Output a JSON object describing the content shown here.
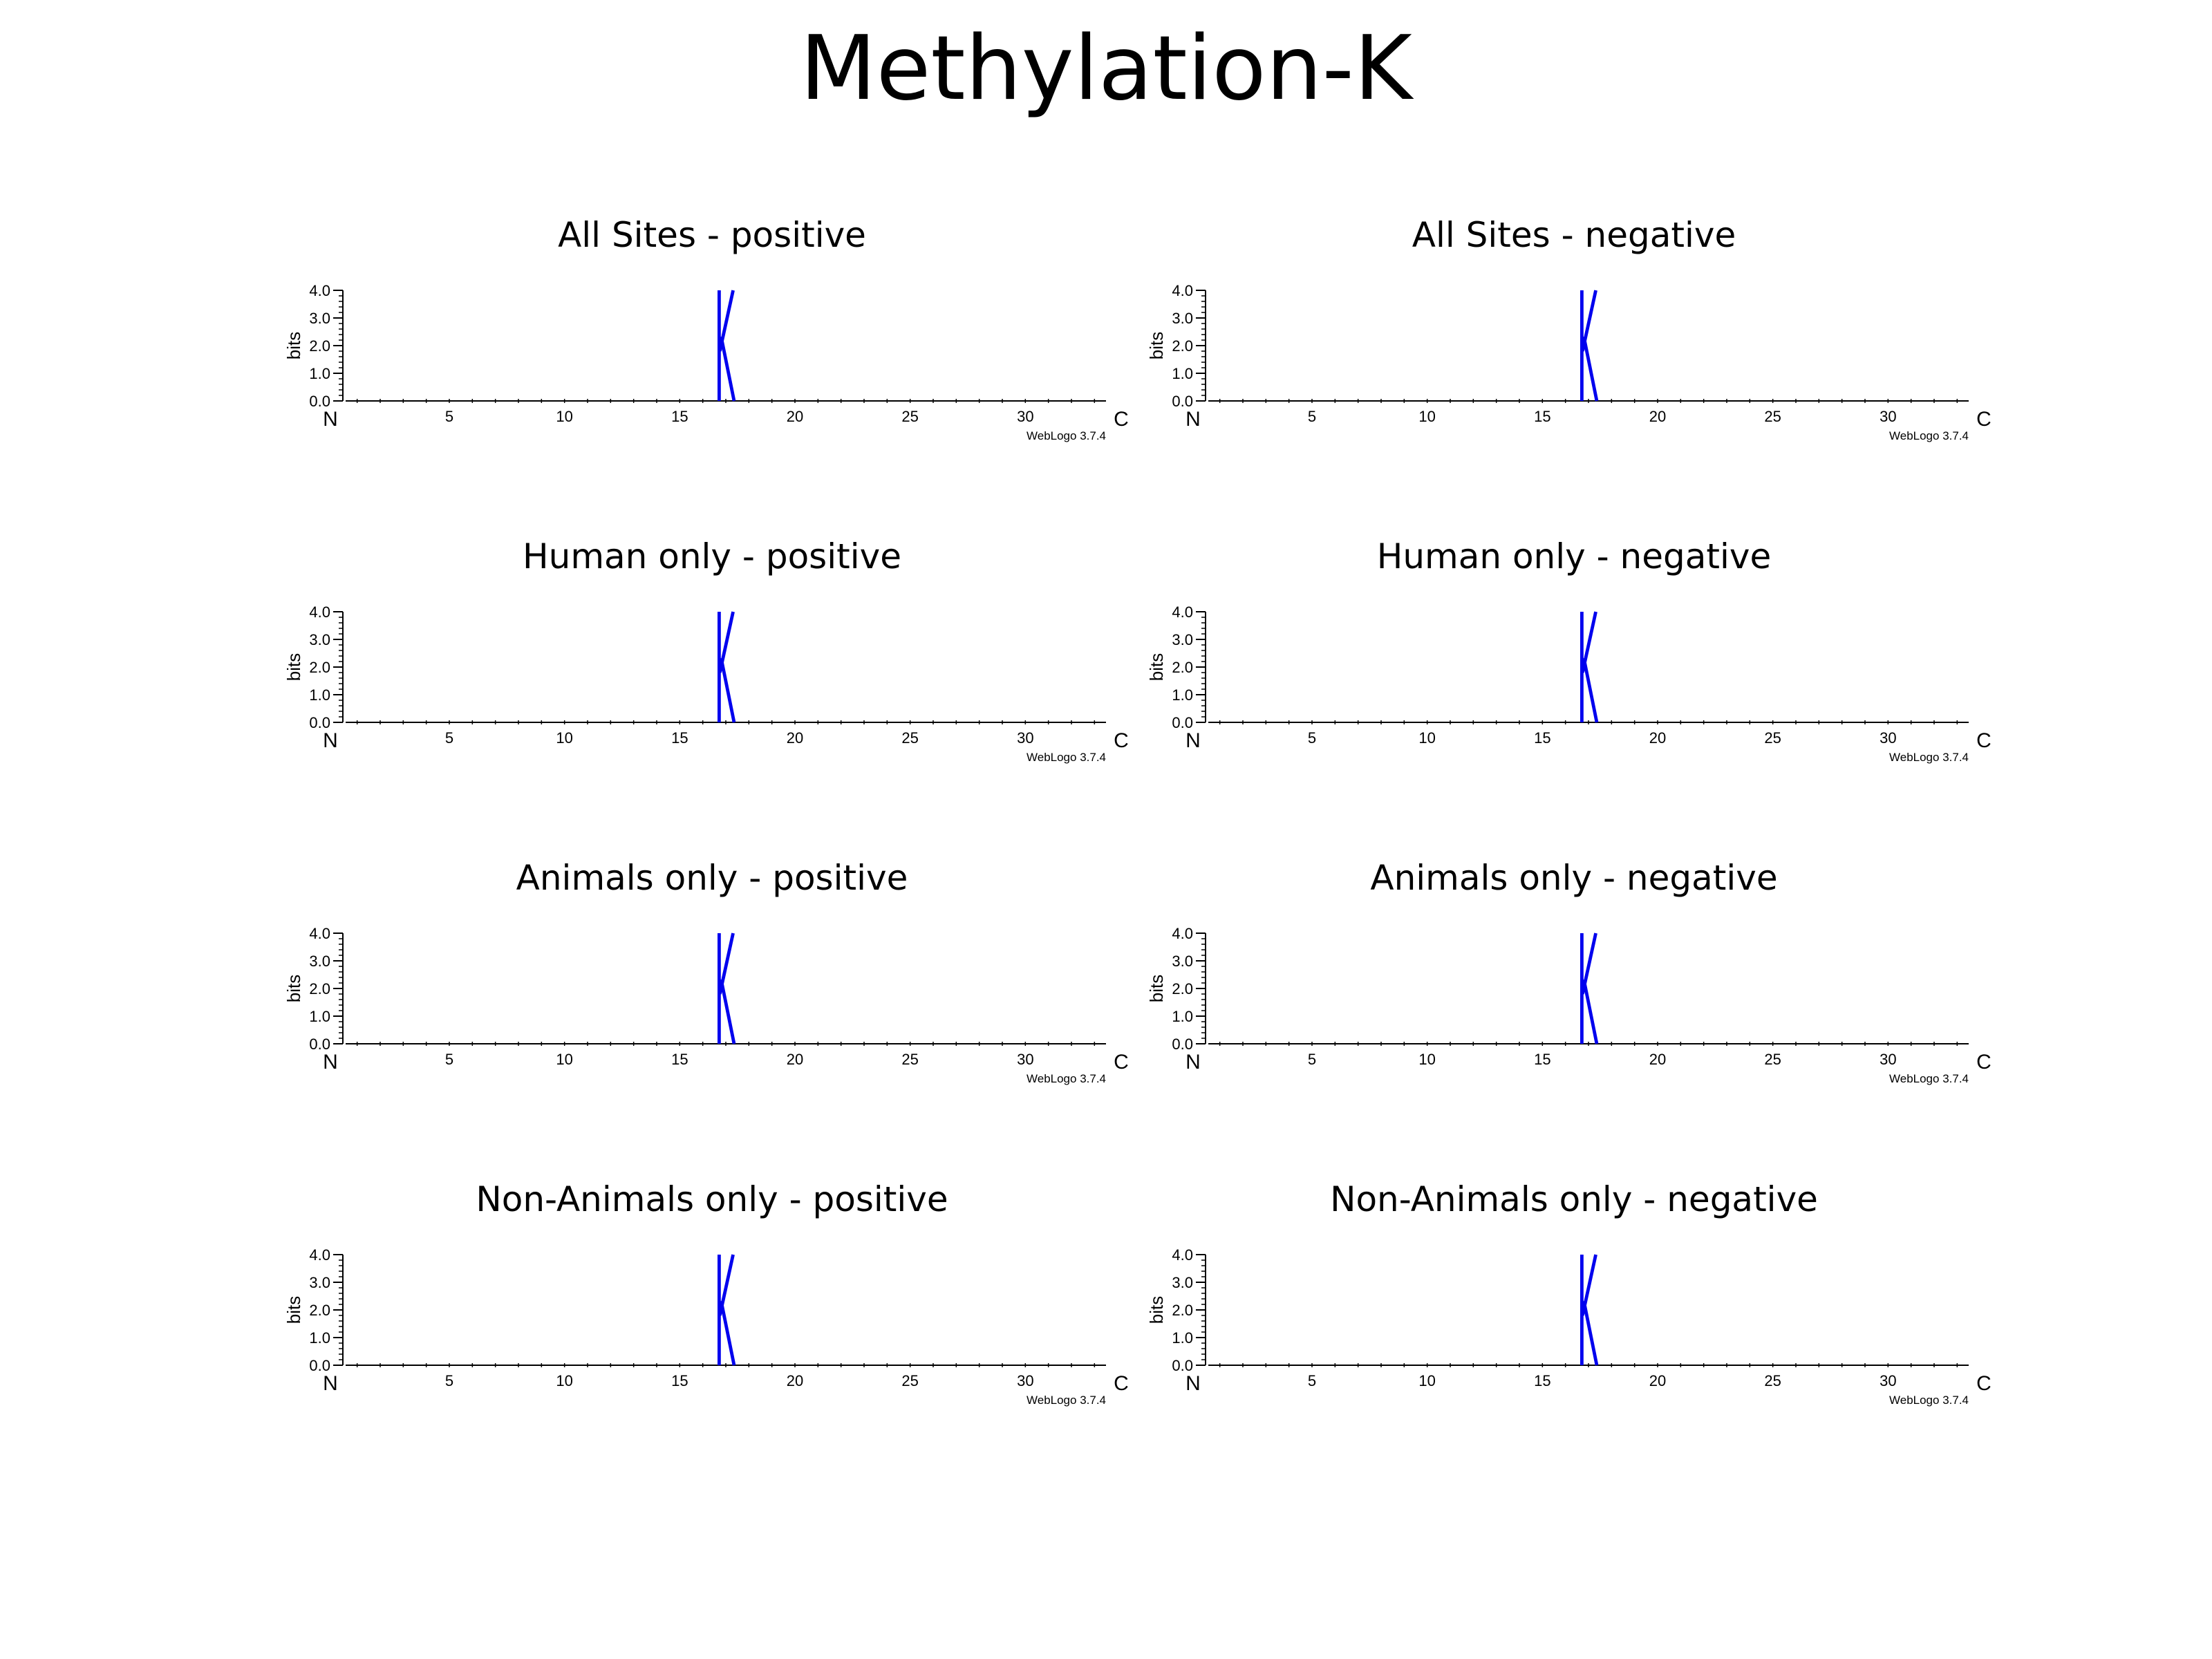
{
  "figure": {
    "title": "Methylation-K"
  },
  "chart_data": [
    {
      "type": "sequence-logo",
      "title": "All Sites - positive",
      "ylabel": "bits",
      "ylim": [
        0,
        4.0
      ],
      "yticks": [
        "0.0",
        "1.0",
        "2.0",
        "3.0",
        "4.0"
      ],
      "xlim": [
        1,
        33
      ],
      "xticks": [
        5,
        10,
        15,
        20,
        25,
        30
      ],
      "start_label": "N",
      "end_label": "C",
      "credit": "WebLogo 3.7.4",
      "letters": [
        {
          "position": 17,
          "residue": "K",
          "bits": 4.0,
          "color": "#0000ee"
        }
      ]
    },
    {
      "type": "sequence-logo",
      "title": "All Sites - negative",
      "ylabel": "bits",
      "ylim": [
        0,
        4.0
      ],
      "yticks": [
        "0.0",
        "1.0",
        "2.0",
        "3.0",
        "4.0"
      ],
      "xlim": [
        1,
        33
      ],
      "xticks": [
        5,
        10,
        15,
        20,
        25,
        30
      ],
      "start_label": "N",
      "end_label": "C",
      "credit": "WebLogo 3.7.4",
      "letters": [
        {
          "position": 17,
          "residue": "K",
          "bits": 4.0,
          "color": "#0000ee"
        }
      ]
    },
    {
      "type": "sequence-logo",
      "title": "Human only - positive",
      "ylabel": "bits",
      "ylim": [
        0,
        4.0
      ],
      "yticks": [
        "0.0",
        "1.0",
        "2.0",
        "3.0",
        "4.0"
      ],
      "xlim": [
        1,
        33
      ],
      "xticks": [
        5,
        10,
        15,
        20,
        25,
        30
      ],
      "start_label": "N",
      "end_label": "C",
      "credit": "WebLogo 3.7.4",
      "letters": [
        {
          "position": 17,
          "residue": "K",
          "bits": 4.0,
          "color": "#0000ee"
        }
      ]
    },
    {
      "type": "sequence-logo",
      "title": "Human only - negative",
      "ylabel": "bits",
      "ylim": [
        0,
        4.0
      ],
      "yticks": [
        "0.0",
        "1.0",
        "2.0",
        "3.0",
        "4.0"
      ],
      "xlim": [
        1,
        33
      ],
      "xticks": [
        5,
        10,
        15,
        20,
        25,
        30
      ],
      "start_label": "N",
      "end_label": "C",
      "credit": "WebLogo 3.7.4",
      "letters": [
        {
          "position": 17,
          "residue": "K",
          "bits": 4.0,
          "color": "#0000ee"
        }
      ]
    },
    {
      "type": "sequence-logo",
      "title": "Animals only - positive",
      "ylabel": "bits",
      "ylim": [
        0,
        4.0
      ],
      "yticks": [
        "0.0",
        "1.0",
        "2.0",
        "3.0",
        "4.0"
      ],
      "xlim": [
        1,
        33
      ],
      "xticks": [
        5,
        10,
        15,
        20,
        25,
        30
      ],
      "start_label": "N",
      "end_label": "C",
      "credit": "WebLogo 3.7.4",
      "letters": [
        {
          "position": 17,
          "residue": "K",
          "bits": 4.0,
          "color": "#0000ee"
        }
      ]
    },
    {
      "type": "sequence-logo",
      "title": "Animals only - negative",
      "ylabel": "bits",
      "ylim": [
        0,
        4.0
      ],
      "yticks": [
        "0.0",
        "1.0",
        "2.0",
        "3.0",
        "4.0"
      ],
      "xlim": [
        1,
        33
      ],
      "xticks": [
        5,
        10,
        15,
        20,
        25,
        30
      ],
      "start_label": "N",
      "end_label": "C",
      "credit": "WebLogo 3.7.4",
      "letters": [
        {
          "position": 17,
          "residue": "K",
          "bits": 4.0,
          "color": "#0000ee"
        }
      ]
    },
    {
      "type": "sequence-logo",
      "title": "Non-Animals only - positive",
      "ylabel": "bits",
      "ylim": [
        0,
        4.0
      ],
      "yticks": [
        "0.0",
        "1.0",
        "2.0",
        "3.0",
        "4.0"
      ],
      "xlim": [
        1,
        33
      ],
      "xticks": [
        5,
        10,
        15,
        20,
        25,
        30
      ],
      "start_label": "N",
      "end_label": "C",
      "credit": "WebLogo 3.7.4",
      "letters": [
        {
          "position": 17,
          "residue": "K",
          "bits": 4.0,
          "color": "#0000ee"
        }
      ]
    },
    {
      "type": "sequence-logo",
      "title": "Non-Animals only - negative",
      "ylabel": "bits",
      "ylim": [
        0,
        4.0
      ],
      "yticks": [
        "0.0",
        "1.0",
        "2.0",
        "3.0",
        "4.0"
      ],
      "xlim": [
        1,
        33
      ],
      "xticks": [
        5,
        10,
        15,
        20,
        25,
        30
      ],
      "start_label": "N",
      "end_label": "C",
      "credit": "WebLogo 3.7.4",
      "letters": [
        {
          "position": 17,
          "residue": "K",
          "bits": 4.0,
          "color": "#0000ee"
        }
      ]
    }
  ]
}
